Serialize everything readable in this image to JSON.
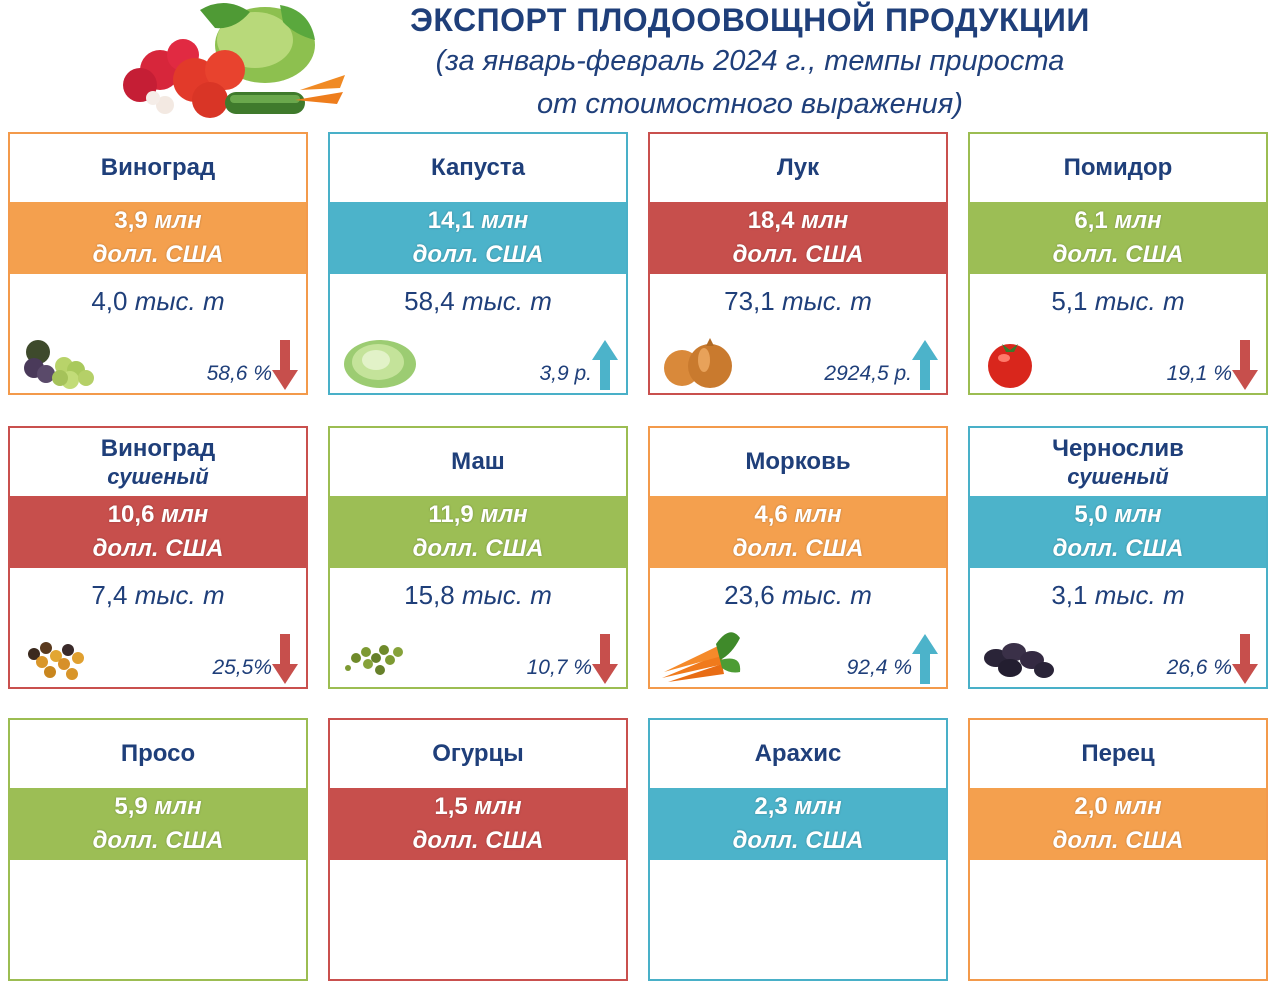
{
  "header": {
    "title": "ЭКСПОРТ ПЛОДООВОЩНОЙ ПРОДУКЦИИ",
    "subtitle_line1": "(за январь-февраль 2024 г., темпы прироста",
    "subtitle_line2": "от стоимостного выражения)"
  },
  "colors": {
    "orange": "#f4a04e",
    "blue": "#4cb3ca",
    "red": "#c74f4c",
    "green": "#9cbe55",
    "text": "#1f3f7a"
  },
  "cards": [
    {
      "name": "Виноград",
      "qualifier": "",
      "value": "3,9",
      "unit1": "млн",
      "unit2": "долл. США",
      "volume": "4,0",
      "volume_unit": "тыс. т",
      "growth": "58,6 %",
      "trend": "down",
      "icon": "grapes-icon"
    },
    {
      "name": "Капуста",
      "qualifier": "",
      "value": "14,1",
      "unit1": "млн",
      "unit2": "долл. США",
      "volume": "58,4",
      "volume_unit": "тыс. т",
      "growth": "3,9 р.",
      "trend": "up",
      "icon": "cabbage-icon"
    },
    {
      "name": "Лук",
      "qualifier": "",
      "value": "18,4",
      "unit1": "млн",
      "unit2": "долл. США",
      "volume": "73,1",
      "volume_unit": "тыс. т",
      "growth": "2924,5 р.",
      "trend": "up",
      "icon": "onion-icon"
    },
    {
      "name": "Помидор",
      "qualifier": "",
      "value": "6,1",
      "unit1": "млн",
      "unit2": "долл. США",
      "volume": "5,1",
      "volume_unit": "тыс. т",
      "growth": "19,1 %",
      "trend": "down",
      "icon": "tomato-icon"
    },
    {
      "name": "Виноград",
      "qualifier": "сушеный",
      "value": "10,6",
      "unit1": "млн",
      "unit2": "долл. США",
      "volume": "7,4",
      "volume_unit": "тыс. т",
      "growth": "25,5%",
      "trend": "down",
      "icon": "raisins-icon"
    },
    {
      "name": "Маш",
      "qualifier": "",
      "value": "11,9",
      "unit1": "млн",
      "unit2": "долл. США",
      "volume": "15,8",
      "volume_unit": "тыс. т",
      "growth": "10,7 %",
      "trend": "down",
      "icon": "mung-bean-icon"
    },
    {
      "name": "Морковь",
      "qualifier": "",
      "value": "4,6",
      "unit1": "млн",
      "unit2": "долл. США",
      "volume": "23,6",
      "volume_unit": "тыс. т",
      "growth": "92,4 %",
      "trend": "up",
      "icon": "carrot-icon"
    },
    {
      "name": "Чернослив",
      "qualifier": "сушеный",
      "value": "5,0",
      "unit1": "млн",
      "unit2": "долл. США",
      "volume": "3,1",
      "volume_unit": "тыс. т",
      "growth": "26,6 %",
      "trend": "down",
      "icon": "prunes-icon"
    },
    {
      "name": "Просо",
      "qualifier": "",
      "value": "5,9",
      "unit1": "млн",
      "unit2": "долл. США",
      "volume": "",
      "volume_unit": "",
      "growth": "",
      "trend": "",
      "icon": ""
    },
    {
      "name": "Огурцы",
      "qualifier": "",
      "value": "1,5",
      "unit1": "млн",
      "unit2": "долл. США",
      "volume": "",
      "volume_unit": "",
      "growth": "",
      "trend": "",
      "icon": ""
    },
    {
      "name": "Арахис",
      "qualifier": "",
      "value": "2,3",
      "unit1": "млн",
      "unit2": "долл. США",
      "volume": "",
      "volume_unit": "",
      "growth": "",
      "trend": "",
      "icon": ""
    },
    {
      "name": "Перец",
      "qualifier": "",
      "value": "2,0",
      "unit1": "млн",
      "unit2": "долл. США",
      "volume": "",
      "volume_unit": "",
      "growth": "",
      "trend": "",
      "icon": ""
    }
  ]
}
